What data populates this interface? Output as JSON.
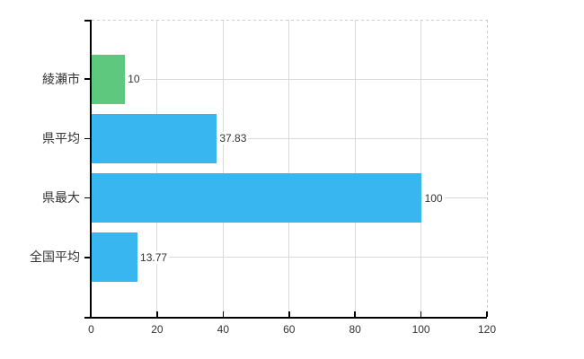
{
  "chart_data": {
    "type": "bar",
    "orientation": "horizontal",
    "title": "",
    "xlabel": "",
    "ylabel": "",
    "categories": [
      "綾瀬市",
      "県平均",
      "県最大",
      "全国平均"
    ],
    "values": [
      10,
      37.83,
      100,
      13.77
    ],
    "value_labels": [
      "10",
      "37.83",
      "100",
      "13.77"
    ],
    "bar_colors": [
      "#5ec87e",
      "#38b6f0",
      "#38b6f0",
      "#38b6f0"
    ],
    "xlim": [
      0,
      120
    ],
    "x_ticks": [
      0,
      20,
      40,
      60,
      80,
      100,
      120
    ],
    "x_tick_labels": [
      "0",
      "20",
      "40",
      "60",
      "80",
      "100",
      "120"
    ],
    "grid": "on",
    "legend": "none",
    "styles": {
      "axis_color": "#000000",
      "grid_color": "#d9d9d9",
      "plot_border_color": "#cccccc",
      "plot_border_style": "dashed",
      "text_color": "#333333",
      "background": "#ffffff"
    }
  }
}
